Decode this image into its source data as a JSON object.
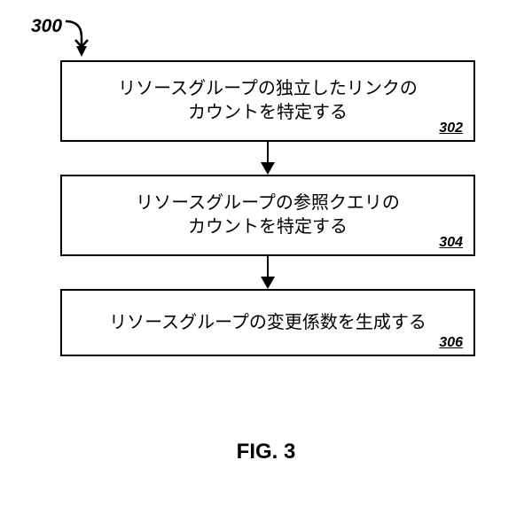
{
  "figure_ref": "300",
  "figure_label": "FIG. 3",
  "boxes": [
    {
      "lines": [
        "リソースグループの独立したリンクの",
        "カウントを特定する"
      ],
      "number": "302",
      "height": 92
    },
    {
      "lines": [
        "リソースグループの参照クエリの",
        "カウントを特定する"
      ],
      "number": "304",
      "height": 92
    },
    {
      "lines": [
        "リソースグループの変更係数を生成する"
      ],
      "number": "306",
      "height": 76
    }
  ],
  "arrows": [
    {
      "length": 38
    },
    {
      "length": 38
    }
  ],
  "colors": {
    "background": "#ffffff",
    "stroke": "#000000",
    "text": "#000000"
  },
  "style": {
    "box_border_width": 2.5,
    "text_fontsize": 20,
    "number_fontsize": 16,
    "label_fontsize": 24,
    "ref_fontsize": 21
  }
}
